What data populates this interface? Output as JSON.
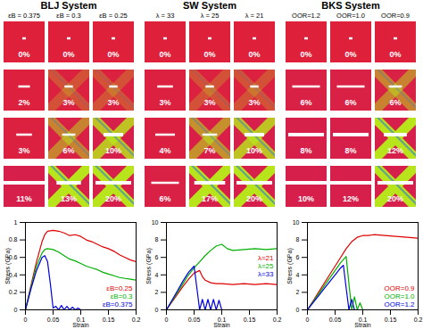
{
  "chart_data": [
    {
      "type": "line",
      "title": "BLJ System",
      "xlabel": "Strain",
      "ylabel": "Stress (GPa)",
      "xlim": [
        0,
        0.2
      ],
      "xticks": [
        0,
        0.05,
        0.1,
        0.15,
        0.2
      ],
      "ylim": [
        0,
        1
      ],
      "yticks": [
        0,
        0.2,
        0.4,
        0.6,
        0.8,
        1
      ],
      "legend": "bottom right",
      "series": [
        {
          "name": "εB=0.25",
          "color": "#e00000",
          "x": [
            0,
            0.01,
            0.02,
            0.03,
            0.035,
            0.04,
            0.05,
            0.06,
            0.07,
            0.08,
            0.09,
            0.1,
            0.11,
            0.12,
            0.13,
            0.14,
            0.15,
            0.16,
            0.17,
            0.18,
            0.19,
            0.2
          ],
          "values": [
            0,
            0.28,
            0.55,
            0.78,
            0.86,
            0.9,
            0.91,
            0.9,
            0.88,
            0.85,
            0.86,
            0.84,
            0.8,
            0.78,
            0.75,
            0.72,
            0.7,
            0.67,
            0.63,
            0.6,
            0.57,
            0.55
          ]
        },
        {
          "name": "εB=0.3",
          "color": "#00b000",
          "x": [
            0,
            0.01,
            0.02,
            0.03,
            0.035,
            0.04,
            0.05,
            0.06,
            0.07,
            0.08,
            0.09,
            0.1,
            0.11,
            0.12,
            0.13,
            0.14,
            0.15,
            0.16,
            0.17,
            0.18,
            0.19,
            0.2
          ],
          "values": [
            0,
            0.26,
            0.5,
            0.65,
            0.69,
            0.7,
            0.69,
            0.66,
            0.62,
            0.58,
            0.56,
            0.53,
            0.5,
            0.48,
            0.46,
            0.43,
            0.41,
            0.39,
            0.37,
            0.36,
            0.35,
            0.34
          ]
        },
        {
          "name": "εB=0.375",
          "color": "#0000e0",
          "x": [
            0,
            0.01,
            0.02,
            0.03,
            0.035,
            0.04,
            0.045,
            0.05,
            0.055,
            0.06,
            0.065,
            0.07,
            0.075,
            0.08,
            0.085,
            0.09,
            0.095,
            0.1
          ],
          "values": [
            0,
            0.24,
            0.45,
            0.6,
            0.62,
            0.55,
            0.3,
            0.02,
            0.04,
            0,
            0.05,
            0,
            0.04,
            0,
            0.03,
            0,
            0.02,
            0
          ]
        }
      ],
      "snapshots": {
        "columns": [
          "εB = 0.375",
          "εB = 0.3",
          "εB = 0.25"
        ],
        "values": [
          [
            0,
            0,
            0
          ],
          [
            2,
            3,
            3
          ],
          [
            3,
            6,
            10
          ],
          [
            11,
            13,
            20
          ]
        ],
        "value_labels": [
          [
            "0%",
            "0%",
            "0%"
          ],
          [
            "2%",
            "3%",
            "3%"
          ],
          [
            "3%",
            "6%",
            "10%"
          ],
          [
            "11%",
            "13%",
            "20%"
          ]
        ]
      }
    },
    {
      "type": "line",
      "title": "SW System",
      "xlabel": "Strain",
      "ylabel": "Stress (GPa)",
      "xlim": [
        0,
        0.2
      ],
      "xticks": [
        0,
        0.05,
        0.1,
        0.15,
        0.2
      ],
      "ylim": [
        0,
        10
      ],
      "yticks": [
        0,
        2,
        4,
        6,
        8,
        10
      ],
      "legend": "right",
      "series": [
        {
          "name": "λ=21",
          "color": "#e00000",
          "x": [
            0,
            0.01,
            0.02,
            0.03,
            0.04,
            0.05,
            0.06,
            0.065,
            0.07,
            0.08,
            0.09,
            0.1,
            0.12,
            0.14,
            0.16,
            0.18,
            0.2
          ],
          "values": [
            0,
            0.9,
            1.8,
            2.7,
            3.5,
            4.2,
            4.5,
            3.8,
            3.4,
            3.1,
            3.0,
            3.0,
            2.9,
            3.0,
            2.9,
            3.0,
            2.9
          ]
        },
        {
          "name": "λ=25",
          "color": "#00b000",
          "x": [
            0,
            0.01,
            0.02,
            0.03,
            0.04,
            0.05,
            0.06,
            0.07,
            0.08,
            0.09,
            0.1,
            0.11,
            0.12,
            0.14,
            0.16,
            0.18,
            0.2
          ],
          "values": [
            0,
            1.0,
            2.0,
            3.0,
            4.0,
            4.8,
            5.5,
            6.2,
            6.8,
            7.3,
            7.5,
            7.0,
            6.8,
            6.9,
            7.0,
            6.9,
            7.0
          ]
        },
        {
          "name": "λ=33",
          "color": "#0000e0",
          "x": [
            0,
            0.01,
            0.02,
            0.03,
            0.04,
            0.05,
            0.055,
            0.06,
            0.065,
            0.07,
            0.075,
            0.08,
            0.085,
            0.09,
            0.095,
            0.1
          ],
          "values": [
            0,
            1.1,
            2.2,
            3.3,
            4.3,
            5.0,
            2.5,
            0,
            1.2,
            0,
            1.2,
            0,
            1.2,
            0,
            1.1,
            0
          ]
        }
      ],
      "snapshots": {
        "columns": [
          "λ = 33",
          "λ = 25",
          "λ = 21"
        ],
        "values": [
          [
            0,
            0,
            0
          ],
          [
            3,
            3,
            3
          ],
          [
            4,
            7,
            10
          ],
          [
            6,
            17,
            20
          ]
        ],
        "value_labels": [
          [
            "0%",
            "0%",
            "0%"
          ],
          [
            "3%",
            "3%",
            "3%"
          ],
          [
            "4%",
            "7%",
            "10%"
          ],
          [
            "6%",
            "17%",
            "20%"
          ]
        ]
      }
    },
    {
      "type": "line",
      "title": "BKS System",
      "xlabel": "Strain",
      "ylabel": "Stress (GPa)",
      "xlim": [
        0,
        0.2
      ],
      "xticks": [
        0,
        0.05,
        0.1,
        0.15,
        0.2
      ],
      "ylim": [
        0,
        10
      ],
      "yticks": [
        0,
        2,
        4,
        6,
        8,
        10
      ],
      "legend": "bottom right",
      "series": [
        {
          "name": "OOR=0.9",
          "color": "#e00000",
          "x": [
            0,
            0.01,
            0.02,
            0.03,
            0.04,
            0.05,
            0.06,
            0.07,
            0.08,
            0.09,
            0.1,
            0.11,
            0.12,
            0.14,
            0.16,
            0.18,
            0.2
          ],
          "values": [
            0,
            1.0,
            2.0,
            3.0,
            4.0,
            5.0,
            6.0,
            7.0,
            7.8,
            8.3,
            8.5,
            8.5,
            8.6,
            8.5,
            8.4,
            8.3,
            8.2
          ]
        },
        {
          "name": "OOR=1.0",
          "color": "#00b000",
          "x": [
            0,
            0.01,
            0.02,
            0.03,
            0.04,
            0.05,
            0.06,
            0.07,
            0.075,
            0.08,
            0.085,
            0.09,
            0.095,
            0.1
          ],
          "values": [
            0,
            0.9,
            1.8,
            2.7,
            3.6,
            4.5,
            5.4,
            6.1,
            3,
            0,
            1.5,
            0,
            0.8,
            0
          ]
        },
        {
          "name": "OOR=1.2",
          "color": "#0000e0",
          "x": [
            0,
            0.01,
            0.02,
            0.03,
            0.04,
            0.05,
            0.06,
            0.065,
            0.07,
            0.075,
            0.08,
            0.085,
            0.09
          ],
          "values": [
            0,
            0.8,
            1.6,
            2.4,
            3.2,
            4.0,
            4.8,
            5.1,
            2.5,
            0,
            1.2,
            0,
            0
          ]
        }
      ],
      "snapshots": {
        "columns": [
          "OOR=1.2",
          "OOR=1.0",
          "OOR=0.9"
        ],
        "values": [
          [
            0,
            0,
            0
          ],
          [
            6,
            6,
            6
          ],
          [
            8,
            8,
            12
          ],
          [
            10,
            12,
            20
          ]
        ],
        "value_labels": [
          [
            "0%",
            "0%",
            "0%"
          ],
          [
            "6%",
            "6%",
            "6%"
          ],
          [
            "8%",
            "8%",
            "12%"
          ],
          [
            "10%",
            "12%",
            "20%"
          ]
        ]
      }
    }
  ]
}
